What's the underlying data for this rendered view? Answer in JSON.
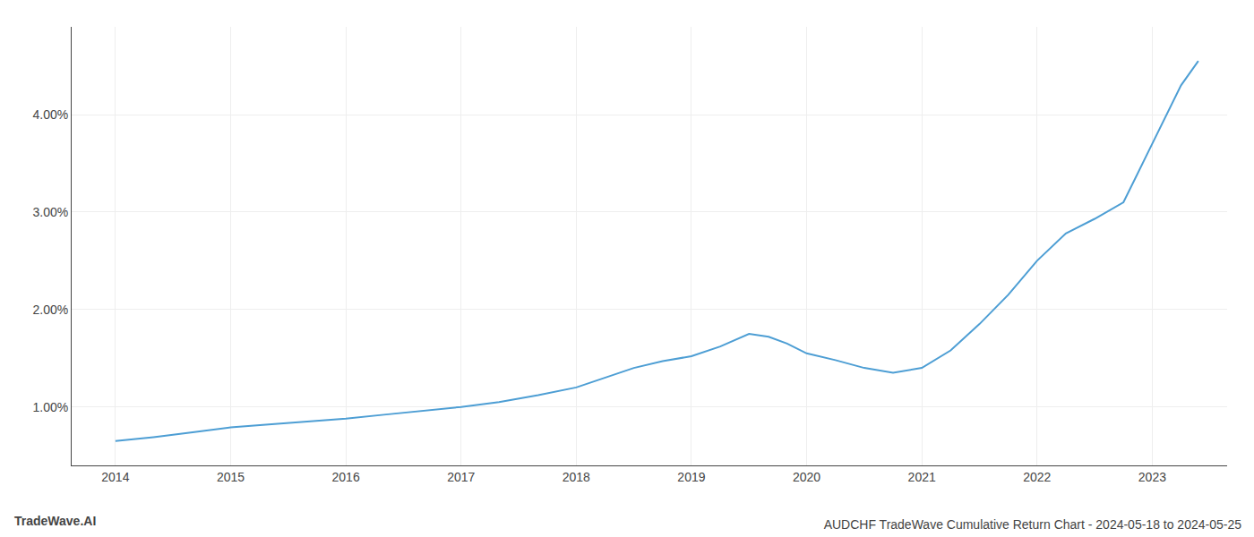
{
  "chart_data": {
    "type": "line",
    "title": "AUDCHF TradeWave Cumulative Return Chart - 2024-05-18 to 2024-05-25",
    "annotations": [
      "TradeWave.AI"
    ],
    "x": [
      2014.0,
      2014.33,
      2014.67,
      2015.0,
      2015.33,
      2015.67,
      2016.0,
      2016.33,
      2016.67,
      2017.0,
      2017.33,
      2017.67,
      2018.0,
      2018.25,
      2018.5,
      2018.75,
      2019.0,
      2019.25,
      2019.5,
      2019.67,
      2019.83,
      2020.0,
      2020.25,
      2020.5,
      2020.75,
      2021.0,
      2021.25,
      2021.5,
      2021.75,
      2022.0,
      2022.25,
      2022.5,
      2022.75,
      2023.0,
      2023.25,
      2023.4
    ],
    "values": [
      0.0065,
      0.0069,
      0.0074,
      0.0079,
      0.0082,
      0.0085,
      0.0088,
      0.0092,
      0.0096,
      0.01,
      0.0105,
      0.0112,
      0.012,
      0.013,
      0.014,
      0.0147,
      0.0152,
      0.0162,
      0.0175,
      0.0172,
      0.0165,
      0.0155,
      0.0148,
      0.014,
      0.0135,
      0.014,
      0.0158,
      0.0185,
      0.0215,
      0.025,
      0.0278,
      0.0293,
      0.031,
      0.037,
      0.043,
      0.0455
    ],
    "color": "#4d9ed4",
    "xlim": [
      2013.62,
      2023.65
    ],
    "xticks": [
      2014,
      2015,
      2016,
      2017,
      2018,
      2019,
      2020,
      2021,
      2022,
      2023
    ],
    "ylim": [
      0.004,
      0.049
    ],
    "yticks": [
      {
        "value": 0.01,
        "label": "1.00%"
      },
      {
        "value": 0.02,
        "label": "2.00%"
      },
      {
        "value": 0.03,
        "label": "3.00%"
      },
      {
        "value": 0.04,
        "label": "4.00%"
      }
    ],
    "grid": true
  }
}
